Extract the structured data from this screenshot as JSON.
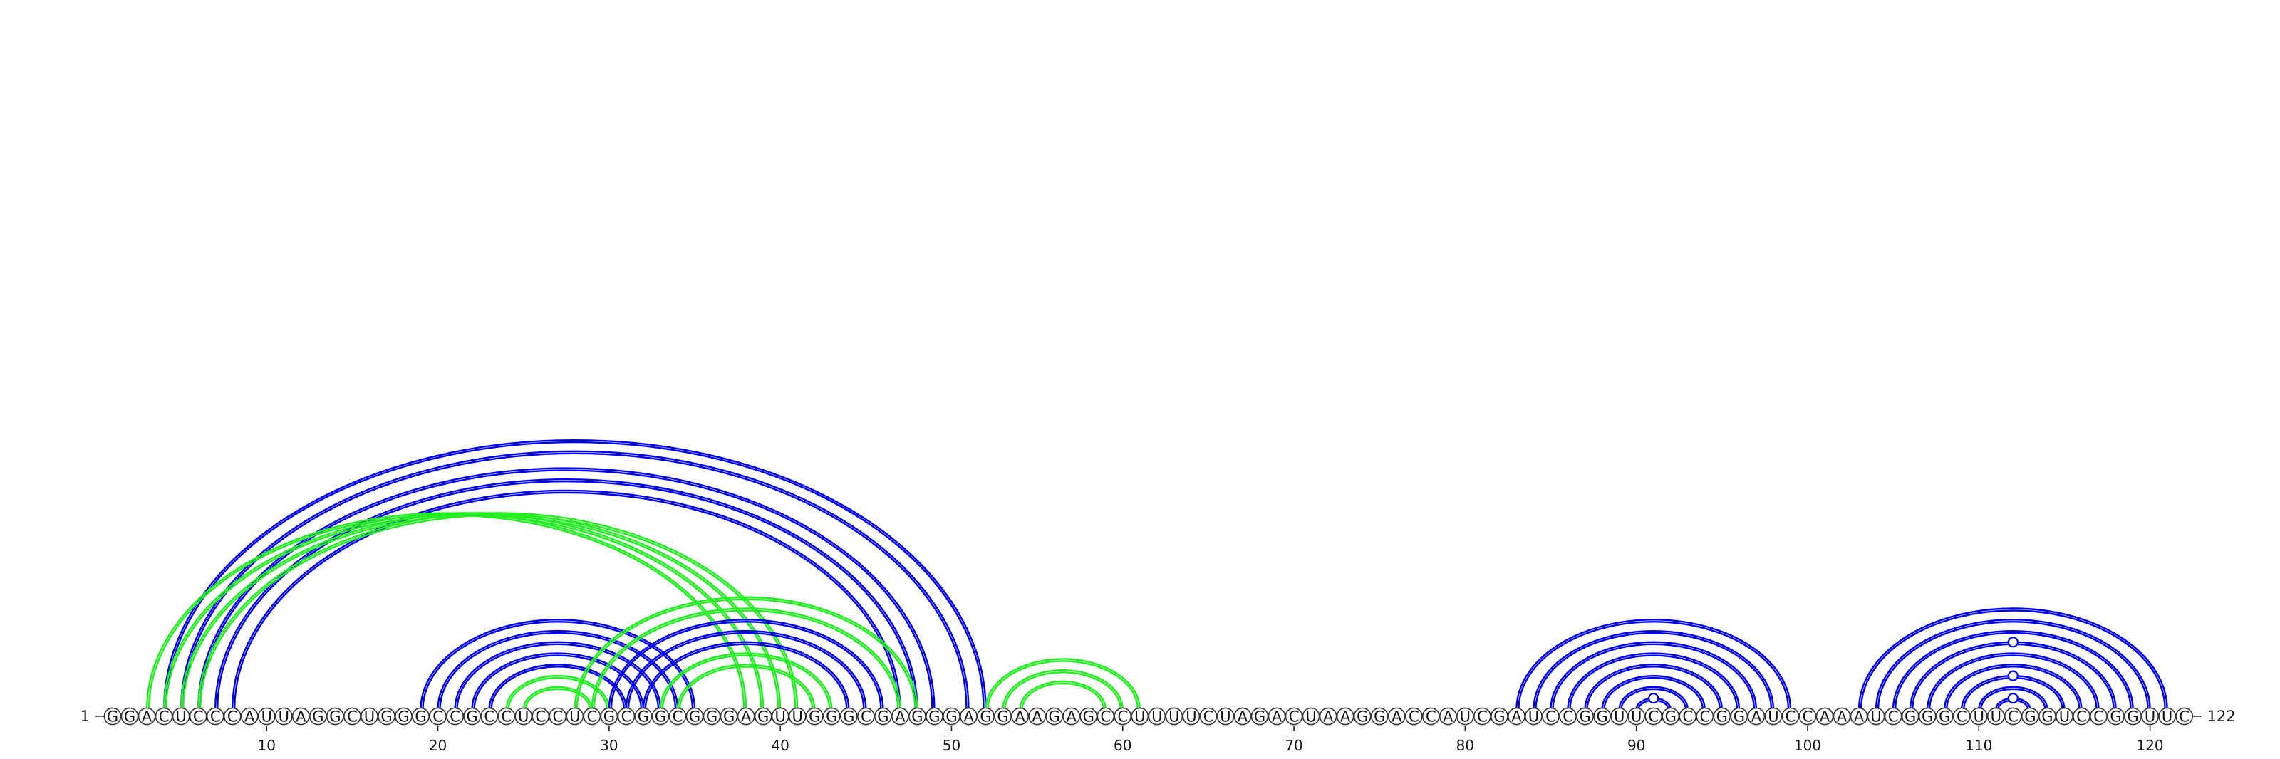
{
  "sequence": "GGACUCCCAUUAGGCUGGGCCGCCUCCUCGCGGCGGGAGUUGGGCGAGGGAGGAAGAGCCUUUUCUAGACUAAGGACCAUCGAUCCGGUUCGCCGGAUCCAAAUCGGGCUUCGGUCCGGUUC",
  "length": 122,
  "start_label": "1",
  "end_label": "122",
  "ticks": [
    10,
    20,
    30,
    40,
    50,
    60,
    70,
    80,
    90,
    100,
    110,
    120
  ],
  "colors": {
    "blue": "#0000ee",
    "green": "#22ee22"
  },
  "arcs": [
    {
      "i": 4,
      "j": 52,
      "color": "blue"
    },
    {
      "i": 5,
      "j": 51,
      "color": "blue"
    },
    {
      "i": 6,
      "j": 49,
      "color": "blue"
    },
    {
      "i": 7,
      "j": 48,
      "color": "blue"
    },
    {
      "i": 8,
      "j": 47,
      "color": "blue"
    },
    {
      "i": 3,
      "j": 38,
      "color": "green"
    },
    {
      "i": 4,
      "j": 39,
      "color": "green"
    },
    {
      "i": 5,
      "j": 40,
      "color": "green"
    },
    {
      "i": 6,
      "j": 41,
      "color": "green"
    },
    {
      "i": 19,
      "j": 35,
      "color": "blue"
    },
    {
      "i": 20,
      "j": 34,
      "color": "blue"
    },
    {
      "i": 21,
      "j": 33,
      "color": "blue"
    },
    {
      "i": 22,
      "j": 32,
      "color": "blue"
    },
    {
      "i": 23,
      "j": 31,
      "color": "blue"
    },
    {
      "i": 24,
      "j": 30,
      "color": "green"
    },
    {
      "i": 25,
      "j": 29,
      "color": "green"
    },
    {
      "i": 28,
      "j": 48,
      "color": "green"
    },
    {
      "i": 29,
      "j": 47,
      "color": "green"
    },
    {
      "i": 30,
      "j": 46,
      "color": "blue"
    },
    {
      "i": 31,
      "j": 45,
      "color": "blue"
    },
    {
      "i": 32,
      "j": 44,
      "color": "blue"
    },
    {
      "i": 33,
      "j": 43,
      "color": "green"
    },
    {
      "i": 34,
      "j": 42,
      "color": "green"
    },
    {
      "i": 52,
      "j": 61,
      "color": "green"
    },
    {
      "i": 53,
      "j": 60,
      "color": "green"
    },
    {
      "i": 54,
      "j": 59,
      "color": "green"
    },
    {
      "i": 83,
      "j": 99,
      "color": "blue"
    },
    {
      "i": 84,
      "j": 98,
      "color": "blue"
    },
    {
      "i": 85,
      "j": 97,
      "color": "blue"
    },
    {
      "i": 86,
      "j": 96,
      "color": "blue"
    },
    {
      "i": 87,
      "j": 95,
      "color": "blue"
    },
    {
      "i": 88,
      "j": 94,
      "color": "blue"
    },
    {
      "i": 89,
      "j": 93,
      "color": "blue"
    },
    {
      "i": 90,
      "j": 92,
      "color": "blue"
    },
    {
      "i": 103,
      "j": 121,
      "color": "blue"
    },
    {
      "i": 104,
      "j": 120,
      "color": "blue"
    },
    {
      "i": 105,
      "j": 119,
      "color": "blue"
    },
    {
      "i": 106,
      "j": 118,
      "color": "blue"
    },
    {
      "i": 107,
      "j": 117,
      "color": "blue"
    },
    {
      "i": 108,
      "j": 116,
      "color": "blue"
    },
    {
      "i": 109,
      "j": 115,
      "color": "blue"
    },
    {
      "i": 110,
      "j": 114,
      "color": "blue"
    },
    {
      "i": 111,
      "j": 113,
      "color": "blue"
    }
  ],
  "markers": [
    {
      "at": 91,
      "level": 1,
      "color": "blue"
    },
    {
      "at": 112,
      "level": 1,
      "color": "blue"
    },
    {
      "at": 112,
      "level": 3,
      "color": "blue"
    },
    {
      "at": 112,
      "level": 6,
      "color": "blue"
    }
  ]
}
